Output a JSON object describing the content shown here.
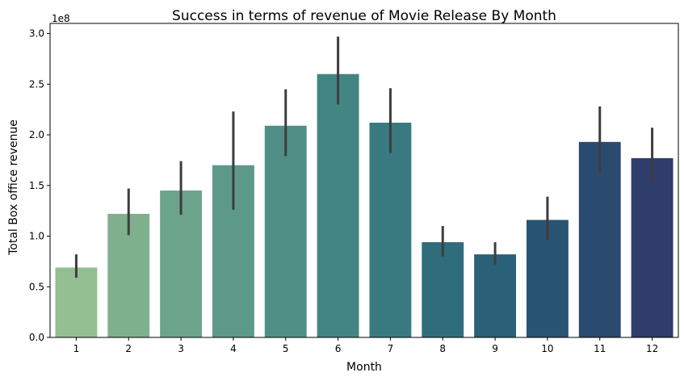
{
  "chart_data": {
    "type": "bar",
    "title": "Success in terms of revenue of Movie Release By Month",
    "xlabel": "Month",
    "ylabel": "Total Box office revenue",
    "y_scale_note": "1e8",
    "categories": [
      "1",
      "2",
      "3",
      "4",
      "5",
      "6",
      "7",
      "8",
      "9",
      "10",
      "11",
      "12"
    ],
    "values": [
      0.69,
      1.22,
      1.45,
      1.7,
      2.09,
      2.6,
      2.12,
      0.94,
      0.82,
      1.16,
      1.93,
      1.77
    ],
    "error_low": [
      0.59,
      1.01,
      1.21,
      1.26,
      1.79,
      2.3,
      1.82,
      0.8,
      0.72,
      0.96,
      1.62,
      1.51
    ],
    "error_high": [
      0.82,
      1.47,
      1.74,
      2.23,
      2.45,
      2.97,
      2.46,
      1.1,
      0.94,
      1.39,
      2.28,
      2.07
    ],
    "colors": [
      "#93bf92",
      "#7fb08e",
      "#6ca48c",
      "#5c9989",
      "#4f8f86",
      "#438583",
      "#397a80",
      "#306d7c",
      "#2b6178",
      "#295473",
      "#2b4a70",
      "#2e3d6b"
    ],
    "ylim": [
      0,
      3.1
    ],
    "yticks": [
      "0.0",
      "0.5",
      "1.0",
      "1.5",
      "2.0",
      "2.5",
      "3.0"
    ],
    "ytick_values": [
      0,
      0.5,
      1.0,
      1.5,
      2.0,
      2.5,
      3.0
    ],
    "grid": false,
    "legend": "none"
  }
}
